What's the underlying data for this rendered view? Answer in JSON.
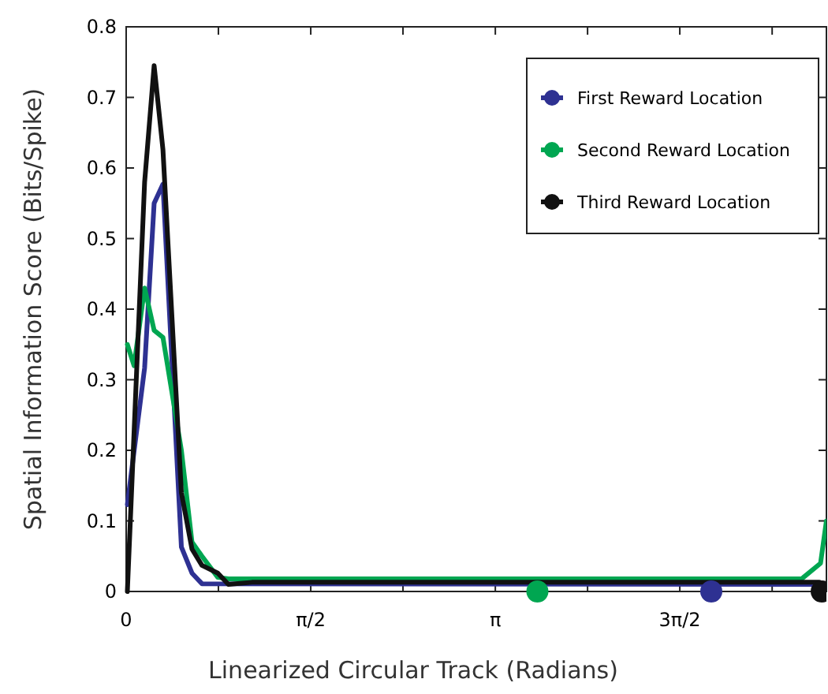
{
  "chart_data": {
    "type": "line",
    "xlabel": "Linearized Circular Track  (Radians)",
    "ylabel": "Spatial Information Score  (Bits/Spike)",
    "xlim": [
      0,
      5.96
    ],
    "ylim": [
      0,
      0.8
    ],
    "xticks": [
      {
        "value": 0,
        "label": "0"
      },
      {
        "value": 0.785,
        "label": null
      },
      {
        "value": 1.571,
        "label": "π/2"
      },
      {
        "value": 2.356,
        "label": null
      },
      {
        "value": 3.142,
        "label": "π"
      },
      {
        "value": 3.927,
        "label": null
      },
      {
        "value": 4.712,
        "label": "3π/2"
      },
      {
        "value": 5.498,
        "label": null
      }
    ],
    "yticks": [
      {
        "value": 0,
        "label": "0"
      },
      {
        "value": 0.1,
        "label": "0.1"
      },
      {
        "value": 0.2,
        "label": "0.2"
      },
      {
        "value": 0.3,
        "label": "0.3"
      },
      {
        "value": 0.4,
        "label": "0.4"
      },
      {
        "value": 0.5,
        "label": "0.5"
      },
      {
        "value": 0.6,
        "label": "0.6"
      },
      {
        "value": 0.7,
        "label": "0.7"
      },
      {
        "value": 0.8,
        "label": "0.8"
      }
    ],
    "grid": false,
    "legend": "top right",
    "marker": "none",
    "line_style": "solid",
    "series": [
      {
        "name": "First Reward Location",
        "color": "#2e3192",
        "x": [
          0.01,
          0.157,
          0.238,
          0.313,
          0.47,
          0.56,
          0.645,
          5.96
        ],
        "values": [
          0.123,
          0.317,
          0.55,
          0.577,
          0.063,
          0.026,
          0.011,
          0.01
        ]
      },
      {
        "name": "Second Reward Location",
        "color": "#00a651",
        "x": [
          0.01,
          0.067,
          0.157,
          0.238,
          0.313,
          0.47,
          0.56,
          0.645,
          0.78,
          0.87,
          5.75,
          5.91,
          5.96
        ],
        "values": [
          0.35,
          0.32,
          0.43,
          0.37,
          0.36,
          0.2,
          0.07,
          0.05,
          0.02,
          0.018,
          0.018,
          0.04,
          0.1
        ]
      },
      {
        "name": "Third Reward Location",
        "color": "#111111",
        "x": [
          0.01,
          0.157,
          0.238,
          0.313,
          0.47,
          0.56,
          0.645,
          0.78,
          0.87,
          1.07,
          5.9
        ],
        "values": [
          0,
          0.58,
          0.745,
          0.626,
          0.14,
          0.06,
          0.037,
          0.026,
          0.01,
          0.013,
          0.013
        ]
      },
      {
        "type": "scatter",
        "marker": "circle",
        "colors": [
          "#00a651",
          "#2e3192",
          "#111111"
        ],
        "x": [
          3.5,
          4.98,
          5.92
        ],
        "values": [
          0,
          0,
          0
        ]
      }
    ]
  }
}
